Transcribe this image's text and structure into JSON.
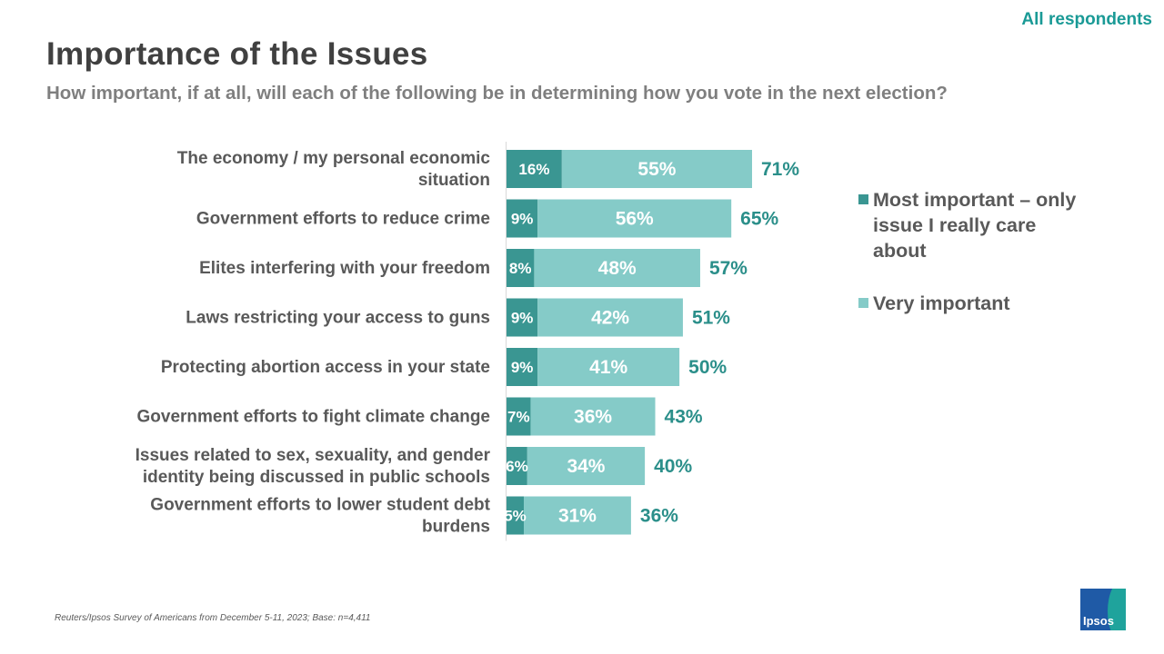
{
  "header": {
    "audience": "All respondents",
    "title": "Importance of the Issues",
    "subtitle": "How important, if at all, will each of the following be in determining how you vote in the next election?"
  },
  "colors": {
    "most_important": "#3a9692",
    "very_important": "#85cbc8",
    "total_text": "#2b8f8a",
    "accent": "#1a9a96"
  },
  "legend": [
    {
      "label": "Most important – only issue I really care about",
      "color": "#3a9692"
    },
    {
      "label": "Very important",
      "color": "#85cbc8"
    }
  ],
  "chart_data": {
    "type": "bar",
    "orientation": "horizontal",
    "stacked": true,
    "categories": [
      "The economy / my personal economic situation",
      "Government efforts to reduce crime",
      "Elites interfering with your freedom",
      "Laws restricting your access to guns",
      "Protecting abortion access in your state",
      "Government efforts to fight climate change",
      "Issues related to sex, sexuality, and gender identity being discussed in public schools",
      "Government efforts to lower student debt burdens"
    ],
    "category_lines": [
      [
        "The economy / my personal economic",
        "situation"
      ],
      [
        "Government efforts to reduce crime"
      ],
      [
        "Elites interfering with your freedom"
      ],
      [
        "Laws restricting your access to guns"
      ],
      [
        "Protecting abortion access in your state"
      ],
      [
        "Government efforts to fight climate change"
      ],
      [
        "Issues related to sex, sexuality, and gender",
        "identity being discussed in public schools"
      ],
      [
        "Government efforts to lower student debt",
        "burdens"
      ]
    ],
    "series": [
      {
        "name": "Most important – only issue I really care about",
        "values": [
          16,
          9,
          8,
          9,
          9,
          7,
          6,
          5
        ]
      },
      {
        "name": "Very important",
        "values": [
          55,
          56,
          48,
          42,
          41,
          36,
          34,
          31
        ]
      }
    ],
    "totals": [
      71,
      65,
      57,
      51,
      50,
      43,
      40,
      36
    ],
    "value_suffix": "%",
    "xlim": [
      0,
      100
    ],
    "grid": false,
    "legend_position": "right"
  },
  "footer": {
    "source": "Reuters/Ipsos Survey of Americans from December 5-11, 2023; Base: n=4,411",
    "logo": "Ipsos"
  }
}
